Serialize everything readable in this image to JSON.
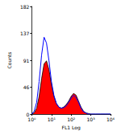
{
  "chart_data": {
    "type": "line",
    "x_label": "FL1 Log",
    "y_label": "Counts",
    "x": [
      1,
      1.33,
      1.78,
      2.37,
      3.16,
      4.22,
      5.62,
      7.5,
      10,
      13.3,
      17.8,
      23.7,
      31.6,
      42.2,
      56.2,
      75,
      100,
      133,
      178,
      237,
      316,
      422,
      562,
      750,
      1000,
      1780,
      3160,
      5620,
      10000
    ],
    "series": [
      {
        "type": "area",
        "color": "#ff0000",
        "values": [
          0,
          2,
          10,
          30,
          60,
          85,
          90,
          75,
          50,
          30,
          18,
          12,
          10,
          12,
          16,
          22,
          30,
          35,
          32,
          22,
          12,
          5,
          2,
          1,
          0,
          0,
          0,
          0,
          0
        ]
      },
      {
        "type": "line",
        "color": "#0000ff",
        "values": [
          0,
          5,
          20,
          55,
          100,
          130,
          120,
          90,
          55,
          32,
          18,
          12,
          10,
          11,
          14,
          20,
          27,
          32,
          28,
          20,
          10,
          4,
          2,
          0,
          0,
          0,
          0,
          0,
          0
        ]
      }
    ],
    "log": "x",
    "xlim": [
      1,
      10000
    ],
    "xticks": [
      {
        "value": 1,
        "label": "10⁰"
      },
      {
        "value": 10,
        "label": "10¹"
      },
      {
        "value": 100,
        "label": "10²"
      },
      {
        "value": 1000,
        "label": "10³"
      },
      {
        "value": 10000,
        "label": "10⁴"
      }
    ],
    "ylim": [
      0,
      182
    ],
    "yticks": [
      0,
      46,
      91,
      137,
      182
    ],
    "grid": false
  }
}
